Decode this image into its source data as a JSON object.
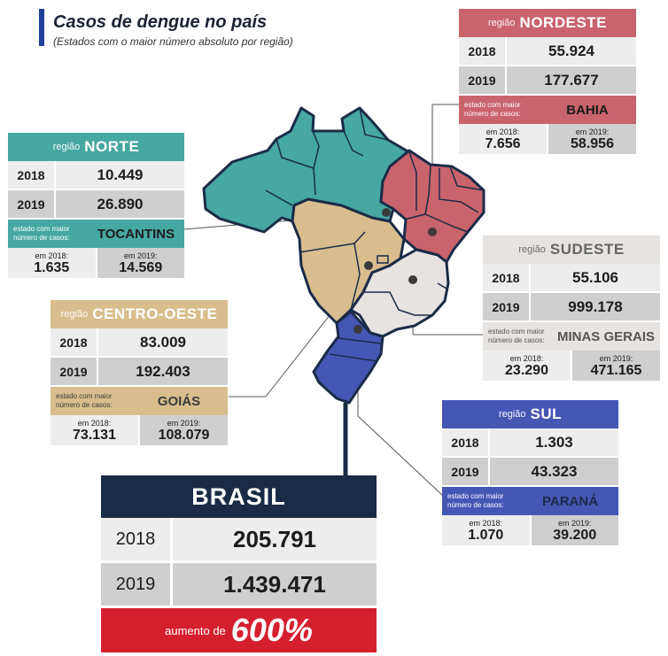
{
  "title": "Casos de dengue no país",
  "subtitle": "(Estados com o maior número absoluto por região)",
  "colors": {
    "norte": "#46a7a3",
    "nordeste": "#c9636c",
    "centro_oeste": "#d9bd8e",
    "sudeste": "#e6e3e0",
    "sul": "#4557b5",
    "brasil": "#1a2b47",
    "increase": "#d51f2e"
  },
  "regions": {
    "norte": {
      "label": "região",
      "name": "NORTE",
      "rows": [
        {
          "year": "2018",
          "value": "10.449"
        },
        {
          "year": "2019",
          "value": "26.890"
        }
      ],
      "state_label": "estado com maior número de casos:",
      "state": "TOCANTINS",
      "sub": [
        {
          "label": "em 2018:",
          "value": "1.635"
        },
        {
          "label": "em 2019:",
          "value": "14.569"
        }
      ]
    },
    "nordeste": {
      "label": "região",
      "name": "NORDESTE",
      "rows": [
        {
          "year": "2018",
          "value": "55.924"
        },
        {
          "year": "2019",
          "value": "177.677"
        }
      ],
      "state_label": "estado com maior número de casos:",
      "state": "BAHIA",
      "sub": [
        {
          "label": "em 2018:",
          "value": "7.656"
        },
        {
          "label": "em 2019:",
          "value": "58.956"
        }
      ]
    },
    "centro_oeste": {
      "label": "região",
      "name": "CENTRO-OESTE",
      "rows": [
        {
          "year": "2018",
          "value": "83.009"
        },
        {
          "year": "2019",
          "value": "192.403"
        }
      ],
      "state_label": "estado com maior número de casos:",
      "state": "GOIÁS",
      "sub": [
        {
          "label": "em 2018:",
          "value": "73.131"
        },
        {
          "label": "em 2019:",
          "value": "108.079"
        }
      ]
    },
    "sudeste": {
      "label": "região",
      "name": "SUDESTE",
      "rows": [
        {
          "year": "2018",
          "value": "55.106"
        },
        {
          "year": "2019",
          "value": "999.178"
        }
      ],
      "state_label": "estado com maior número de casos:",
      "state": "MINAS GERAIS",
      "sub": [
        {
          "label": "em 2018:",
          "value": "23.290"
        },
        {
          "label": "em 2019:",
          "value": "471.165"
        }
      ]
    },
    "sul": {
      "label": "região",
      "name": "SUL",
      "rows": [
        {
          "year": "2018",
          "value": "1.303"
        },
        {
          "year": "2019",
          "value": "43.323"
        }
      ],
      "state_label": "estado com maior número de casos:",
      "state": "PARANÁ",
      "sub": [
        {
          "label": "em 2018:",
          "value": "1.070"
        },
        {
          "label": "em 2019:",
          "value": "39.200"
        }
      ]
    }
  },
  "brasil": {
    "name": "BRASIL",
    "rows": [
      {
        "year": "2018",
        "value": "205.791"
      },
      {
        "year": "2019",
        "value": "1.439.471"
      }
    ],
    "increase_label": "aumento de",
    "increase_value": "600%"
  }
}
